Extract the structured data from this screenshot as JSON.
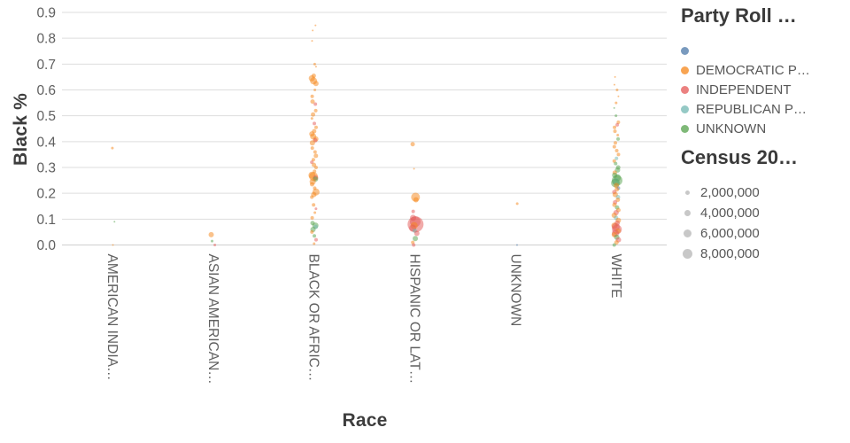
{
  "chart_data": {
    "type": "scatter",
    "title": "",
    "xlabel": "Race",
    "ylabel": "Black %",
    "ylim": [
      0.0,
      0.9
    ],
    "ytick_step": 0.1,
    "grid": true,
    "legend_position": "right",
    "categories": [
      "AMERICAN INDIA…",
      "ASIAN AMERICAN…",
      "BLACK OR AFRIC…",
      "HISPANIC OR LAT…",
      "UNKNOWN",
      "WHITE"
    ],
    "party_colors": {
      "b": "#4c78a8",
      "d": "#f58518",
      "i": "#e45756",
      "r": "#72b7b2",
      "u": "#54a24b"
    },
    "point_opacity": 0.5,
    "legend": {
      "party": {
        "title": "Party Roll …",
        "items": [
          {
            "key": "b",
            "label": ""
          },
          {
            "key": "d",
            "label": "DEMOCRATIC P…"
          },
          {
            "key": "i",
            "label": "INDEPENDENT"
          },
          {
            "key": "r",
            "label": "REPUBLICAN P…"
          },
          {
            "key": "u",
            "label": "UNKNOWN"
          }
        ]
      },
      "size": {
        "title": "Census 20…",
        "items": [
          "2,000,000",
          "4,000,000",
          "6,000,000",
          "8,000,000"
        ]
      }
    },
    "points": [
      [
        0,
        0.375,
        "d",
        1.5
      ],
      [
        0,
        0.09,
        "u",
        1
      ],
      [
        0,
        0.0,
        "d",
        1
      ],
      [
        1,
        0.04,
        "d",
        3
      ],
      [
        1,
        0.015,
        "u",
        1.5
      ],
      [
        1,
        0.0,
        "i",
        1.5
      ],
      [
        2,
        0.85,
        "d",
        1
      ],
      [
        2,
        0.83,
        "d",
        1
      ],
      [
        2,
        0.79,
        "d",
        1
      ],
      [
        2,
        0.7,
        "d",
        1.5
      ],
      [
        2,
        0.69,
        "d",
        1
      ],
      [
        2,
        0.655,
        "d",
        2.5
      ],
      [
        2,
        0.645,
        "d",
        3.5
      ],
      [
        2,
        0.635,
        "d",
        4
      ],
      [
        2,
        0.625,
        "d",
        3
      ],
      [
        2,
        0.6,
        "d",
        1.5
      ],
      [
        2,
        0.575,
        "d",
        2
      ],
      [
        2,
        0.555,
        "d",
        2.5
      ],
      [
        2,
        0.545,
        "i",
        2
      ],
      [
        2,
        0.52,
        "d",
        2
      ],
      [
        2,
        0.505,
        "d",
        2.5
      ],
      [
        2,
        0.49,
        "d",
        1.5
      ],
      [
        2,
        0.47,
        "i",
        2
      ],
      [
        2,
        0.455,
        "d",
        2
      ],
      [
        2,
        0.44,
        "d",
        2.5
      ],
      [
        2,
        0.43,
        "d",
        3
      ],
      [
        2,
        0.42,
        "d",
        3.5
      ],
      [
        2,
        0.41,
        "d",
        3
      ],
      [
        2,
        0.405,
        "i",
        2.5
      ],
      [
        2,
        0.395,
        "d",
        3
      ],
      [
        2,
        0.375,
        "d",
        2
      ],
      [
        2,
        0.36,
        "d",
        2
      ],
      [
        2,
        0.345,
        "d",
        2.5
      ],
      [
        2,
        0.33,
        "d",
        2
      ],
      [
        2,
        0.32,
        "i",
        2
      ],
      [
        2,
        0.31,
        "d",
        2.5
      ],
      [
        2,
        0.3,
        "d",
        2
      ],
      [
        2,
        0.285,
        "d",
        2
      ],
      [
        2,
        0.27,
        "d",
        4
      ],
      [
        2,
        0.265,
        "d",
        5
      ],
      [
        2,
        0.26,
        "i",
        3
      ],
      [
        2,
        0.255,
        "u",
        3
      ],
      [
        2,
        0.245,
        "d",
        3.5
      ],
      [
        2,
        0.235,
        "d",
        2.5
      ],
      [
        2,
        0.22,
        "d",
        2
      ],
      [
        2,
        0.205,
        "d",
        4
      ],
      [
        2,
        0.195,
        "d",
        3
      ],
      [
        2,
        0.185,
        "d",
        2
      ],
      [
        2,
        0.155,
        "d",
        2
      ],
      [
        2,
        0.14,
        "i",
        1.5
      ],
      [
        2,
        0.125,
        "d",
        1.5
      ],
      [
        2,
        0.105,
        "d",
        2
      ],
      [
        2,
        0.085,
        "u",
        2.5
      ],
      [
        2,
        0.075,
        "u",
        3.5
      ],
      [
        2,
        0.07,
        "r",
        2.5
      ],
      [
        2,
        0.06,
        "u",
        3
      ],
      [
        2,
        0.05,
        "d",
        2
      ],
      [
        2,
        0.035,
        "u",
        2
      ],
      [
        2,
        0.02,
        "i",
        2
      ],
      [
        2,
        0.005,
        "d",
        1.5
      ],
      [
        3,
        0.39,
        "d",
        2.5
      ],
      [
        3,
        0.295,
        "d",
        1
      ],
      [
        3,
        0.185,
        "d",
        5
      ],
      [
        3,
        0.175,
        "d",
        3
      ],
      [
        3,
        0.13,
        "i",
        2
      ],
      [
        3,
        0.105,
        "i",
        3.5
      ],
      [
        3,
        0.09,
        "i",
        6
      ],
      [
        3,
        0.08,
        "i",
        9
      ],
      [
        3,
        0.075,
        "d",
        4
      ],
      [
        3,
        0.065,
        "i",
        4
      ],
      [
        3,
        0.055,
        "r",
        2.5
      ],
      [
        3,
        0.045,
        "i",
        3
      ],
      [
        3,
        0.025,
        "u",
        3
      ],
      [
        3,
        0.01,
        "d",
        2
      ],
      [
        3,
        0.0,
        "i",
        2
      ],
      [
        4,
        0.16,
        "d",
        1.5
      ],
      [
        4,
        0.0,
        "b",
        1
      ],
      [
        5,
        0.65,
        "d",
        1
      ],
      [
        5,
        0.62,
        "d",
        1
      ],
      [
        5,
        0.6,
        "d",
        1.5
      ],
      [
        5,
        0.575,
        "d",
        1
      ],
      [
        5,
        0.55,
        "d",
        1.5
      ],
      [
        5,
        0.53,
        "u",
        1
      ],
      [
        5,
        0.5,
        "u",
        1.5
      ],
      [
        5,
        0.475,
        "d",
        2
      ],
      [
        5,
        0.465,
        "i",
        2
      ],
      [
        5,
        0.455,
        "d",
        2
      ],
      [
        5,
        0.44,
        "d",
        2
      ],
      [
        5,
        0.425,
        "d",
        1.5
      ],
      [
        5,
        0.41,
        "u",
        2
      ],
      [
        5,
        0.395,
        "d",
        2
      ],
      [
        5,
        0.38,
        "d",
        2
      ],
      [
        5,
        0.365,
        "d",
        2
      ],
      [
        5,
        0.35,
        "d",
        2
      ],
      [
        5,
        0.335,
        "r",
        2
      ],
      [
        5,
        0.325,
        "d",
        2
      ],
      [
        5,
        0.315,
        "u",
        2
      ],
      [
        5,
        0.3,
        "u",
        2.5
      ],
      [
        5,
        0.29,
        "u",
        3
      ],
      [
        5,
        0.28,
        "d",
        2.5
      ],
      [
        5,
        0.27,
        "u",
        3
      ],
      [
        5,
        0.26,
        "u",
        4
      ],
      [
        5,
        0.25,
        "u",
        6
      ],
      [
        5,
        0.245,
        "r",
        4
      ],
      [
        5,
        0.24,
        "u",
        5
      ],
      [
        5,
        0.23,
        "d",
        3
      ],
      [
        5,
        0.22,
        "b",
        2
      ],
      [
        5,
        0.215,
        "d",
        2.5
      ],
      [
        5,
        0.205,
        "i",
        2.5
      ],
      [
        5,
        0.195,
        "d",
        3
      ],
      [
        5,
        0.185,
        "r",
        2.5
      ],
      [
        5,
        0.175,
        "d",
        2.5
      ],
      [
        5,
        0.165,
        "i",
        2.5
      ],
      [
        5,
        0.155,
        "d",
        2.5
      ],
      [
        5,
        0.145,
        "u",
        2.5
      ],
      [
        5,
        0.135,
        "d",
        2.5
      ],
      [
        5,
        0.125,
        "i",
        3
      ],
      [
        5,
        0.115,
        "d",
        3
      ],
      [
        5,
        0.105,
        "r",
        2.5
      ],
      [
        5,
        0.095,
        "d",
        3
      ],
      [
        5,
        0.085,
        "i",
        3
      ],
      [
        5,
        0.075,
        "d",
        3.5
      ],
      [
        5,
        0.07,
        "i",
        4.5
      ],
      [
        5,
        0.06,
        "i",
        5.5
      ],
      [
        5,
        0.055,
        "d",
        3
      ],
      [
        5,
        0.045,
        "i",
        4
      ],
      [
        5,
        0.04,
        "d",
        3
      ],
      [
        5,
        0.03,
        "u",
        3
      ],
      [
        5,
        0.02,
        "i",
        3
      ],
      [
        5,
        0.01,
        "d",
        2.5
      ],
      [
        5,
        0.0,
        "u",
        2
      ]
    ]
  }
}
